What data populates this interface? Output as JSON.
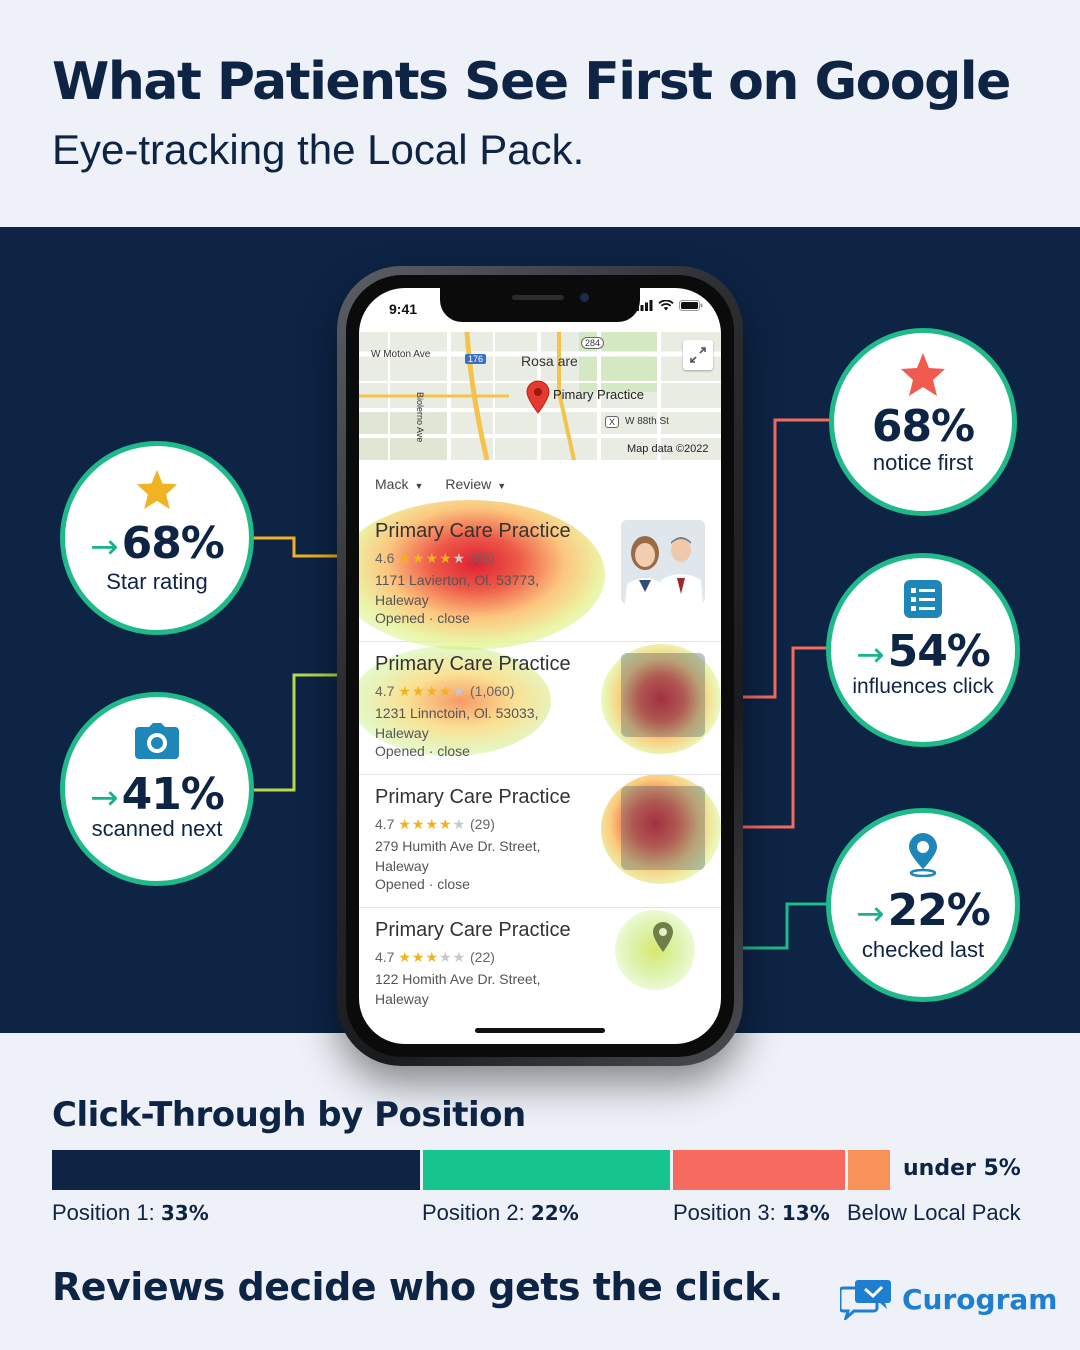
{
  "header": {
    "title": "What Patients See First on Google",
    "subtitle": "Eye-tracking the Local Pack."
  },
  "phone": {
    "status_time": "9:41",
    "map": {
      "labels": {
        "street_1": "W Moton Ave",
        "route_176": "176",
        "area": "Rosa are",
        "route_284": "284",
        "pin_label": "Pimary Practice",
        "street_vertical": "Biolerno Ave",
        "street_2": "W 88th St",
        "route_x": "X",
        "attribution": "Map data ©2022"
      }
    },
    "filters": [
      {
        "label": "Mack"
      },
      {
        "label": "Review"
      }
    ],
    "listings": [
      {
        "name": "Primary Care Practice",
        "rating": "4.6",
        "stars_on": "★★★★",
        "stars_off": "★",
        "reviews": "(65)",
        "address_1": "1171 Lavierton, Ol. 53773,",
        "address_2": "Haleway",
        "hours": "Opened · close"
      },
      {
        "name": "Primary Care Practice",
        "rating": "4.7",
        "stars_on": "★★★★",
        "stars_off": "★",
        "reviews": "(1,060)",
        "address_1": "1231 Linnctoin, Ol. 53033,",
        "address_2": "Haleway",
        "hours": "Opened · close"
      },
      {
        "name": "Primary Care Practice",
        "rating": "4.7",
        "stars_on": "★★★★",
        "stars_off": "★",
        "reviews": "(29)",
        "address_1": "279 Humith Ave Dr. Street,",
        "address_2": "Haleway",
        "hours": "Opened · close"
      },
      {
        "name": "Primary Care Practice",
        "rating": "4.7",
        "stars_on": "★★★",
        "stars_off": "★★",
        "reviews": "(22)",
        "address_1": "122 Homith Ave Dr. Street,",
        "address_2": "Haleway",
        "hours": ""
      }
    ]
  },
  "stats": {
    "left_top": {
      "icon": "star-icon",
      "arrow": "→",
      "value": "68%",
      "label": "Star rating"
    },
    "left_bottom": {
      "icon": "camera-icon",
      "arrow": "→",
      "value": "41%",
      "label": "scanned next"
    },
    "right_1": {
      "icon": "star-icon",
      "value": "68%",
      "label": "notice first"
    },
    "right_2": {
      "icon": "list-icon",
      "arrow": "→",
      "value": "54%",
      "label": "influences click"
    },
    "right_3": {
      "icon": "map-pin-icon",
      "arrow": "→",
      "value": "22%",
      "label": "checked last"
    }
  },
  "ctr": {
    "title": "Click-Through by Position",
    "segments": [
      {
        "label": "Position 1:",
        "value": "33%",
        "color": "#0d2445"
      },
      {
        "label": "Position 2:",
        "value": "22%",
        "color": "#16c48e"
      },
      {
        "label": "Position 3:",
        "value": "13%",
        "color": "#f56b5f"
      },
      {
        "label": "Below Local Pack",
        "value": "under 5%",
        "color": "#f9925a"
      }
    ]
  },
  "footer": {
    "tagline": "Reviews decide who gets the click.",
    "brand": "Curogram"
  },
  "colors": {
    "navy": "#0d2445",
    "teal": "#1fb98a",
    "coral": "#f56b5f",
    "orange": "#f9925a",
    "gold": "#f0b323",
    "brand_blue": "#1e7fd0"
  }
}
